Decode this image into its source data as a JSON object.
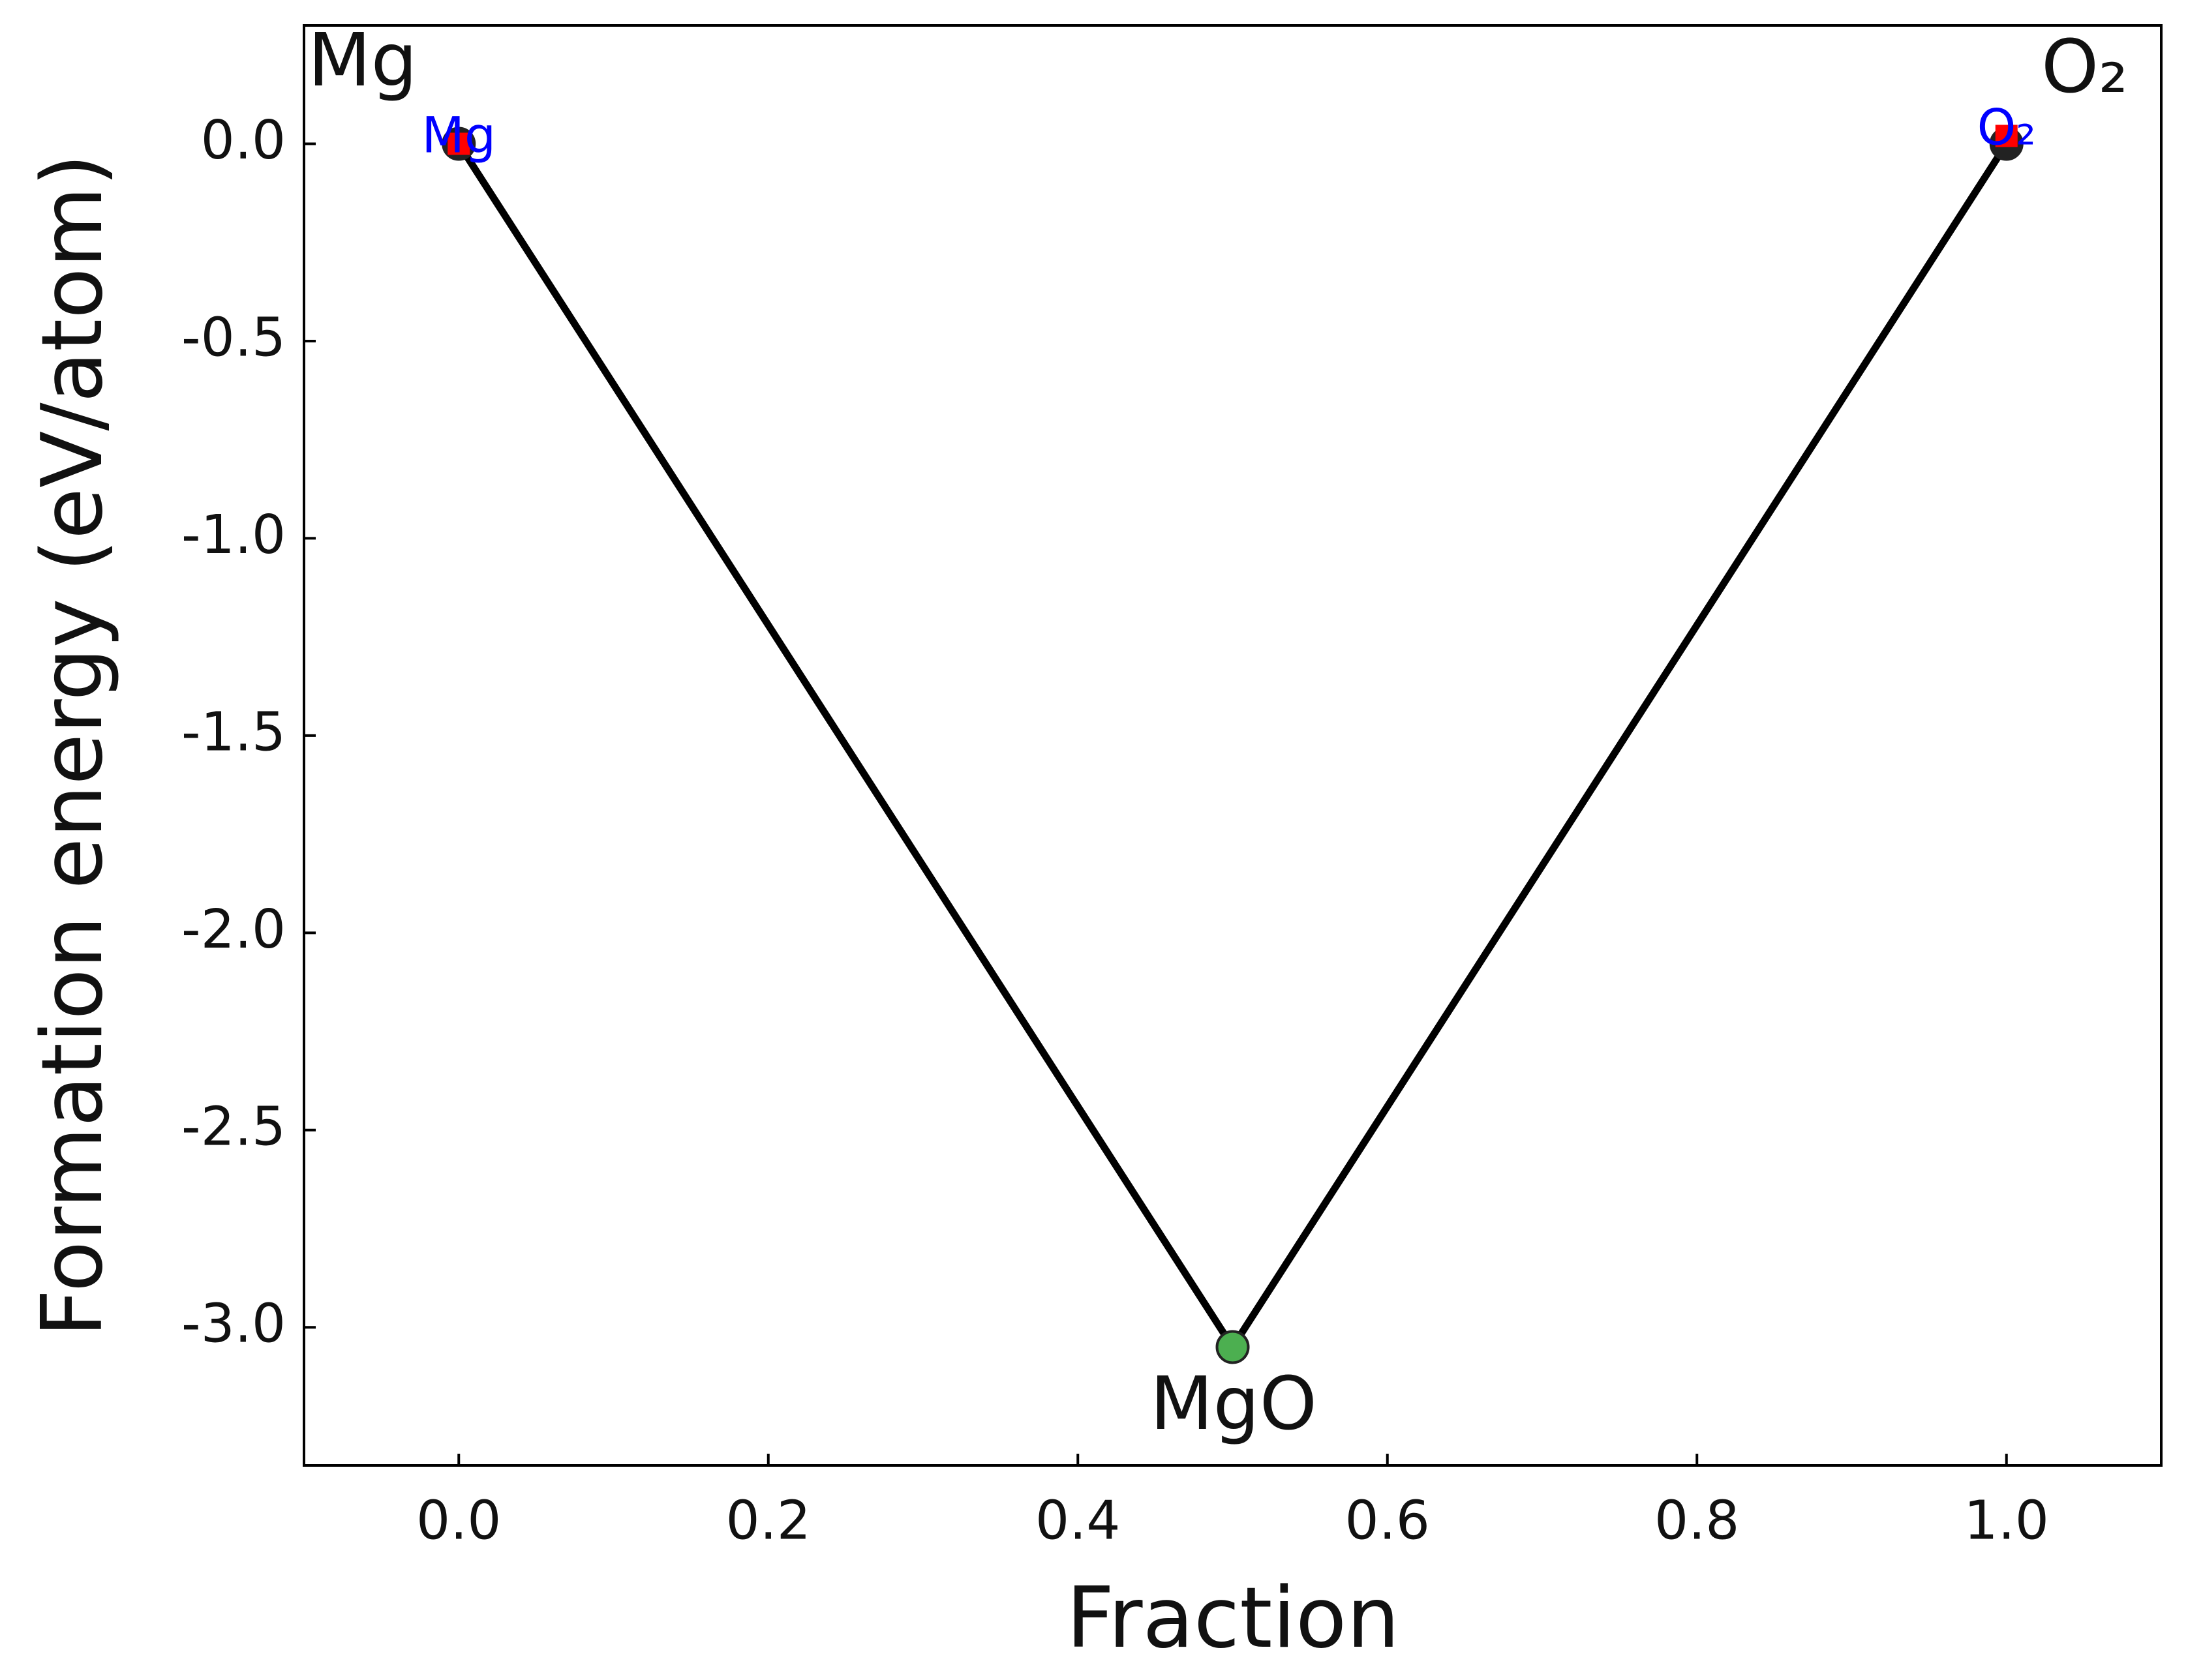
{
  "chart_data": {
    "type": "line",
    "xlabel": "Fraction",
    "ylabel": "Formation energy (eV/atom)",
    "xlim": [
      -0.1,
      1.1
    ],
    "ylim": [
      -3.35,
      0.3
    ],
    "xticks": [
      {
        "value": 0,
        "label": "0.0"
      },
      0.2,
      0.4,
      0.6,
      0.8,
      {
        "value": 1,
        "label": "1.0"
      }
    ],
    "yticks": [
      {
        "value": 0,
        "label": "0.0"
      },
      -0.5,
      {
        "value": -1,
        "label": "-1.0"
      },
      -1.5,
      {
        "value": -2,
        "label": "-2.0"
      },
      -2.5,
      {
        "value": -3,
        "label": "-3.0"
      }
    ],
    "annotations": [
      "Mg",
      "O₂",
      "MgO"
    ],
    "series": [
      {
        "type": "line",
        "color": "#000000",
        "x": [
          0,
          0.5,
          1
        ],
        "values": [
          0,
          -3.05,
          0
        ],
        "marker_colors": [
          "#222222",
          "#4caf50",
          "#222222"
        ]
      },
      {
        "type": "scatter",
        "marker": "square",
        "color": "#ff0000",
        "x": [
          0,
          1
        ],
        "values": [
          0,
          0.02
        ],
        "labels": [
          "Mg",
          "O₂"
        ],
        "label_color": "#0000ff"
      }
    ]
  }
}
